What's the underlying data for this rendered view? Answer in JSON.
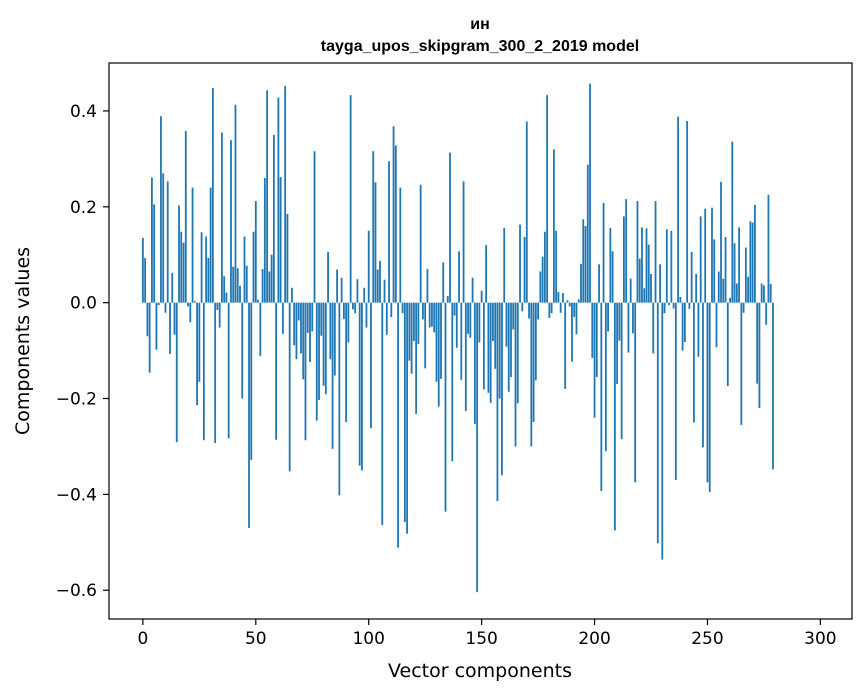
{
  "chart_data": {
    "type": "bar",
    "title_line1": "ин",
    "title_line2": "tayga_upos_skipgram_300_2_2019 model",
    "xlabel": "Vector components",
    "ylabel": "Components values",
    "xlim": [
      -15,
      314
    ],
    "ylim": [
      -0.66,
      0.5
    ],
    "xticks": [
      0,
      50,
      100,
      150,
      200,
      250,
      300
    ],
    "xtick_labels": [
      "0",
      "50",
      "100",
      "150",
      "200",
      "250",
      "300"
    ],
    "yticks": [
      -0.6,
      -0.4,
      -0.2,
      0.0,
      0.2,
      0.4
    ],
    "ytick_labels": [
      "−0.6",
      "−0.4",
      "−0.2",
      "0.0",
      "0.2",
      "0.4"
    ],
    "color": "#1f77b4",
    "values": [
      0.135,
      0.093,
      -0.07,
      -0.146,
      0.261,
      0.205,
      -0.098,
      -0.005,
      0.389,
      0.27,
      -0.021,
      0.253,
      -0.107,
      0.062,
      -0.067,
      -0.291,
      0.203,
      0.148,
      0.125,
      0.358,
      -0.008,
      -0.041,
      0.24,
      0.003,
      -0.214,
      -0.165,
      0.147,
      -0.287,
      0.138,
      0.093,
      0.24,
      0.448,
      -0.293,
      -0.015,
      -0.052,
      0.355,
      0.055,
      0.021,
      -0.283,
      0.339,
      0.075,
      0.413,
      0.072,
      0.035,
      -0.2,
      0.138,
      0.077,
      -0.47,
      -0.328,
      0.148,
      0.212,
      0.006,
      -0.111,
      0.07,
      0.26,
      0.443,
      0.065,
      0.1,
      0.35,
      -0.286,
      0.428,
      0.262,
      -0.065,
      0.452,
      0.185,
      -0.352,
      0.031,
      -0.089,
      -0.118,
      -0.037,
      -0.106,
      -0.16,
      -0.287,
      -0.063,
      -0.124,
      -0.06,
      0.316,
      -0.246,
      -0.203,
      -0.069,
      -0.173,
      -0.191,
      0.106,
      -0.118,
      -0.305,
      -0.152,
      0.069,
      -0.402,
      0.052,
      -0.034,
      -0.249,
      -0.083,
      0.433,
      -0.014,
      -0.022,
      0.049,
      -0.34,
      -0.35,
      0.031,
      -0.052,
      0.15,
      -0.262,
      0.316,
      0.251,
      0.069,
      0.087,
      -0.464,
      0.048,
      -0.067,
      0.295,
      -0.03,
      0.368,
      0.328,
      -0.511,
      0.24,
      -0.022,
      -0.458,
      -0.482,
      -0.121,
      -0.148,
      -0.08,
      -0.232,
      -0.086,
      0.246,
      -0.035,
      -0.137,
      0.07,
      -0.052,
      -0.05,
      -0.062,
      -0.165,
      -0.217,
      -0.159,
      0.084,
      -0.436,
      0.014,
      0.313,
      -0.331,
      -0.027,
      -0.094,
      0.107,
      -0.161,
      0.253,
      -0.226,
      -0.065,
      -0.073,
      0.052,
      -0.253,
      -0.604,
      -0.083,
      0.025,
      -0.181,
      0.12,
      -0.188,
      -0.209,
      -0.08,
      -0.138,
      -0.414,
      -0.2,
      -0.36,
      0.156,
      -0.092,
      -0.186,
      -0.155,
      -0.056,
      -0.3,
      -0.21,
      0.163,
      -0.018,
      0.137,
      0.378,
      -0.033,
      -0.3,
      -0.249,
      -0.162,
      -0.035,
      0.065,
      0.096,
      0.148,
      0.433,
      -0.032,
      -0.022,
      0.32,
      0.15,
      0.022,
      -0.021,
      0.02,
      -0.18,
      0.005,
      -0.008,
      -0.123,
      -0.03,
      -0.066,
      0.007,
      0.081,
      0.174,
      0.16,
      0.288,
      0.457,
      -0.115,
      -0.24,
      -0.155,
      0.08,
      -0.393,
      0.208,
      -0.31,
      -0.06,
      0.156,
      0.107,
      -0.475,
      -0.17,
      -0.079,
      -0.285,
      0.18,
      0.216,
      -0.104,
      0.05,
      -0.064,
      -0.375,
      0.212,
      0.092,
      0.157,
      0.03,
      0.155,
      0.121,
      0.06,
      -0.106,
      0.212,
      -0.502,
      0.08,
      -0.536,
      -0.022,
      0.153,
      -0.005,
      0.15,
      -0.012,
      -0.37,
      0.388,
      0.012,
      -0.1,
      -0.082,
      0.379,
      -0.013,
      0.106,
      -0.25,
      0.06,
      -0.113,
      0.18,
      -0.302,
      0.196,
      -0.375,
      -0.395,
      0.198,
      0.132,
      -0.093,
      0.065,
      0.252,
      0.05,
      0.137,
      -0.174,
      0.01,
      0.336,
      0.124,
      0.04,
      0.157,
      -0.255,
      -0.021,
      0.115,
      0.054,
      0.17,
      0.167,
      0.204,
      -0.169,
      -0.22,
      0.04,
      0.036,
      -0.046,
      0.225,
      0.039,
      -0.348
    ]
  }
}
